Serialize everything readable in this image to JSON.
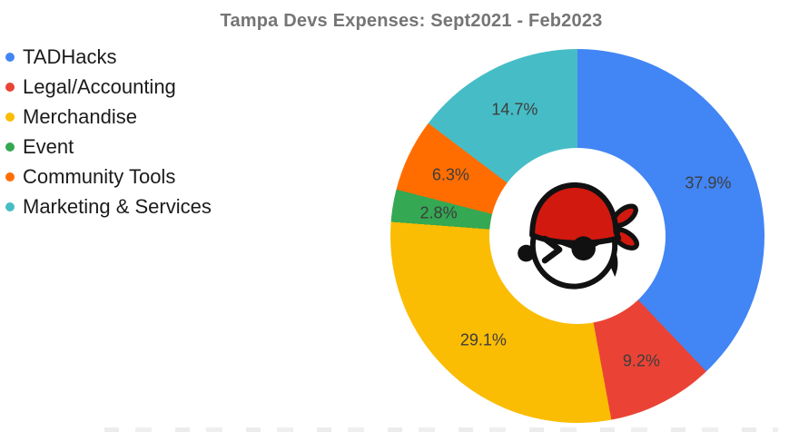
{
  "chart_data": {
    "type": "pie",
    "subtype": "donut",
    "title": "Tampa Devs Expenses: Sept2021 - Feb2023",
    "legend_position": "left",
    "direction": "clockwise",
    "start_angle_deg": 0,
    "categories": [
      "TADHacks",
      "Legal/Accounting",
      "Merchandise",
      "Event",
      "Community Tools",
      "Marketing & Services"
    ],
    "values": [
      37.9,
      9.2,
      29.1,
      2.8,
      6.3,
      14.7
    ],
    "slice_labels": [
      "37.9%",
      "9.2%",
      "29.1%",
      "2.8%",
      "6.3%",
      "14.7%"
    ],
    "colors": [
      "#4285F4",
      "#EA4335",
      "#FBBC04",
      "#34A853",
      "#FF6D01",
      "#46BDC6"
    ],
    "units": "percent",
    "center_icon": "pirate-face-icon"
  },
  "styles": {
    "title_color": "#757575",
    "slice_label_color": "#3d3d3d",
    "legend_text_color": "#1b1b1b",
    "background": "#ffffff",
    "bandana_red": "#d2190f",
    "icon_outline": "#111111"
  }
}
